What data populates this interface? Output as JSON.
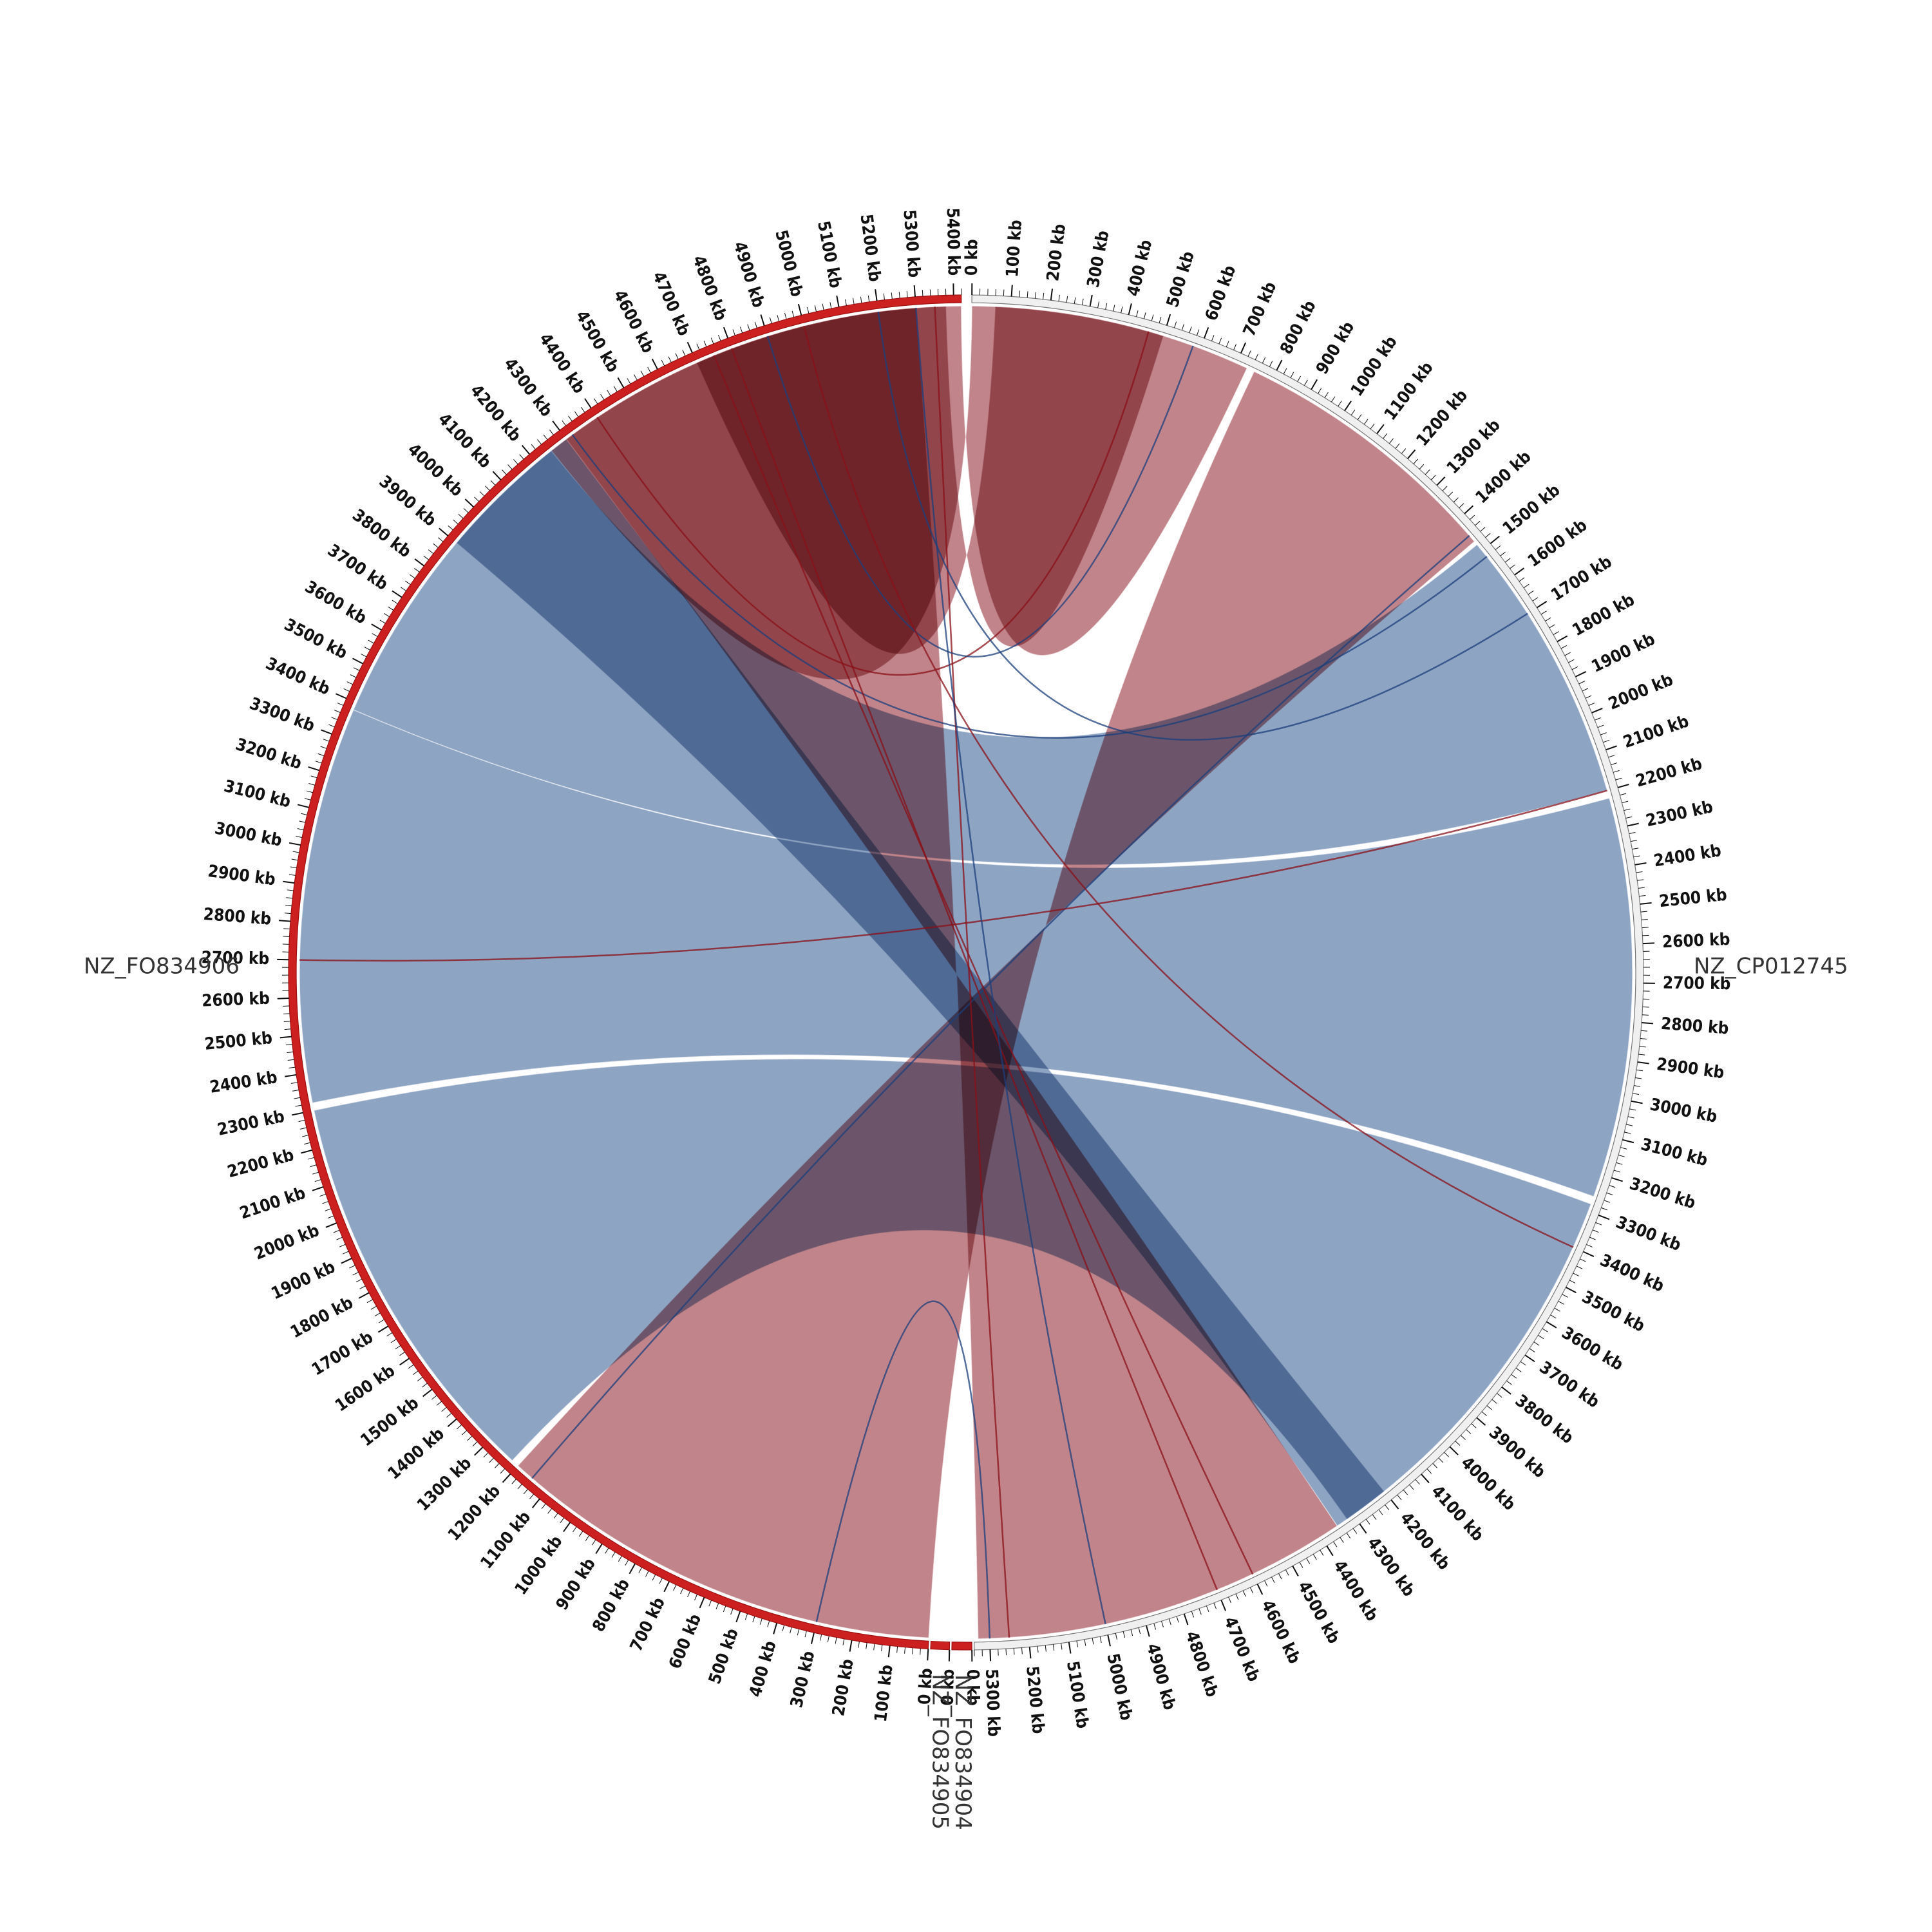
{
  "colors": {
    "background": "#ffffff",
    "forward_ribbon": "#7e97bb",
    "inverted_ribbon": "#b8737a",
    "forward_line": "#1b3f7c",
    "inverted_line": "#8a1018",
    "ring_red": "#cc2020",
    "ring_gray": "#f0f0f0",
    "ring_gray_stroke": "#777777",
    "tick": "#111111"
  },
  "sequences": [
    {
      "id": "NZ_CP012745",
      "label": "NZ_CP012745",
      "length_kb": 5340,
      "ring": "gray",
      "start_deg": 0.5,
      "end_deg": 179.3,
      "label_side": "right"
    },
    {
      "id": "NZ_FO834904",
      "label": "NZ_FO834904",
      "length_kb": 10,
      "ring": "red",
      "start_deg": 179.5,
      "end_deg": 181.2,
      "label_side": "bottom"
    },
    {
      "id": "NZ_FO834905",
      "label": "NZ_FO834905",
      "length_kb": 10,
      "ring": "red",
      "start_deg": 181.4,
      "end_deg": 183.0,
      "label_side": "bottom"
    },
    {
      "id": "NZ_FO834906",
      "label": "NZ_FO834906",
      "length_kb": 5420,
      "ring": "red",
      "start_deg": 183.2,
      "end_deg": 359.6,
      "label_side": "left"
    }
  ],
  "tick_unit": "kb",
  "tick_interval_kb": 100,
  "ribbons": [
    {
      "type": "forward",
      "a": [
        "NZ_CP012745",
        1480,
        2200
      ],
      "b": [
        "NZ_FO834906",
        3380,
        4250
      ]
    },
    {
      "type": "forward",
      "a": [
        "NZ_CP012745",
        2220,
        3260
      ],
      "b": [
        "NZ_FO834906",
        2320,
        3380
      ]
    },
    {
      "type": "forward",
      "a": [
        "NZ_CP012745",
        3280,
        4320
      ],
      "b": [
        "NZ_FO834906",
        1220,
        2300
      ]
    },
    {
      "type": "inverted",
      "a": [
        "NZ_CP012745",
        0,
        730
      ],
      "b": [
        "NZ_FO834906",
        4250,
        5420
      ]
    },
    {
      "type": "inverted",
      "a": [
        "NZ_CP012745",
        750,
        1470
      ],
      "b": [
        "NZ_FO834906",
        0,
        1200
      ]
    },
    {
      "type": "inverted",
      "a": [
        "NZ_CP012745",
        4350,
        5330
      ],
      "b": [
        "NZ_FO834906",
        4300,
        5300
      ]
    },
    {
      "type": "forward",
      "a": [
        "NZ_CP012745",
        4200,
        4350
      ],
      "b": [
        "NZ_FO834906",
        3900,
        4300
      ]
    },
    {
      "type": "inverted",
      "a": [
        "NZ_CP012745",
        60,
        500
      ],
      "b": [
        "NZ_FO834906",
        4700,
        5380
      ]
    }
  ],
  "link_lines": [
    {
      "type": "inverted",
      "a": [
        "NZ_CP012745",
        460
      ],
      "b": [
        "NZ_FO834906",
        4400
      ]
    },
    {
      "type": "forward",
      "a": [
        "NZ_CP012745",
        1450
      ],
      "b": [
        "NZ_FO834906",
        1150
      ]
    },
    {
      "type": "forward",
      "a": [
        "NZ_CP012745",
        1520
      ],
      "b": [
        "NZ_FO834906",
        4320
      ]
    },
    {
      "type": "inverted",
      "a": [
        "NZ_CP012745",
        4700
      ],
      "b": [
        "NZ_FO834906",
        4800
      ]
    },
    {
      "type": "inverted",
      "a": [
        "NZ_CP012745",
        5250
      ],
      "b": [
        "NZ_FO834906",
        5350
      ]
    },
    {
      "type": "forward",
      "a": [
        "NZ_CP012745",
        5300
      ],
      "b": [
        "NZ_FO834906",
        300
      ]
    },
    {
      "type": "inverted",
      "a": [
        "NZ_CP012745",
        2200
      ],
      "b": [
        "NZ_FO834906",
        2700
      ]
    },
    {
      "type": "forward",
      "a": [
        "NZ_CP012745",
        580
      ],
      "b": [
        "NZ_FO834906",
        4900
      ]
    },
    {
      "type": "inverted",
      "a": [
        "NZ_CP012745",
        4600
      ],
      "b": [
        "NZ_FO834906",
        4750
      ]
    },
    {
      "type": "forward",
      "a": [
        "NZ_CP012745",
        1700
      ],
      "b": [
        "NZ_FO834906",
        5200
      ]
    },
    {
      "type": "inverted",
      "a": [
        "NZ_CP012745",
        3400
      ],
      "b": [
        "NZ_FO834906",
        5000
      ]
    },
    {
      "type": "forward",
      "a": [
        "NZ_CP012745",
        5000
      ],
      "b": [
        "NZ_FO834906",
        5300
      ]
    }
  ]
}
